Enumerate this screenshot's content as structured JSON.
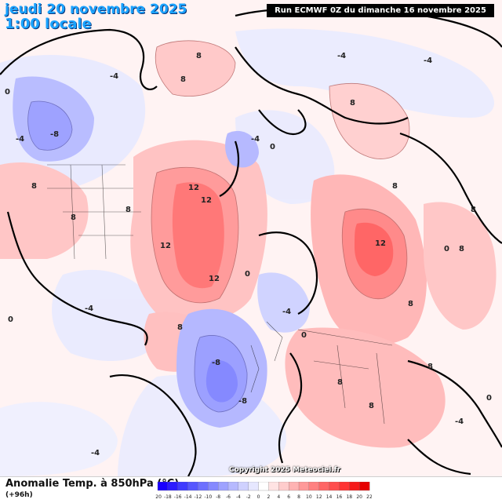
{
  "header": {
    "date": "jeudi 20 novembre 2025",
    "time": "1:00 locale",
    "run": "Run ECMWF 0Z du dimanche 16 novembre 2025"
  },
  "footer": {
    "title": "Anomalie Temp. à 850hPa (°C)",
    "lead": "(+96h)",
    "credit": "Copyright 2025 Meteociel.fr"
  },
  "colorbar": {
    "ticks": [
      "-20",
      "-18",
      "-16",
      "-14",
      "-12",
      "-10",
      "-8",
      "-6",
      "-4",
      "-2",
      "0",
      "2",
      "4",
      "6",
      "8",
      "10",
      "12",
      "14",
      "16",
      "18",
      "20",
      "22"
    ],
    "colors": [
      "#1a00ff",
      "#2c1cff",
      "#3f3bff",
      "#5657ff",
      "#6d70ff",
      "#8589ff",
      "#9ea2ff",
      "#b6b9ff",
      "#cfd1ff",
      "#e6e7ff",
      "#ffffff",
      "#ffe3e3",
      "#ffcccc",
      "#ffb3b3",
      "#ff9999",
      "#ff8080",
      "#ff6666",
      "#ff4d4d",
      "#ff3333",
      "#f51a1a",
      "#e60000"
    ]
  },
  "contour_labels": {
    "warm": [
      "12",
      "12",
      "12",
      "12",
      "12",
      "8",
      "8",
      "8",
      "8",
      "8",
      "8",
      "8",
      "8",
      "8",
      "8",
      "8",
      "8",
      "8",
      "8"
    ],
    "cold": [
      "-8",
      "-8",
      "-8",
      "-4",
      "-4",
      "-4",
      "-4",
      "-4",
      "-4",
      "-4",
      "-4",
      "-4"
    ],
    "zero": [
      "0",
      "0",
      "0",
      "0",
      "0",
      "0",
      "0"
    ]
  }
}
